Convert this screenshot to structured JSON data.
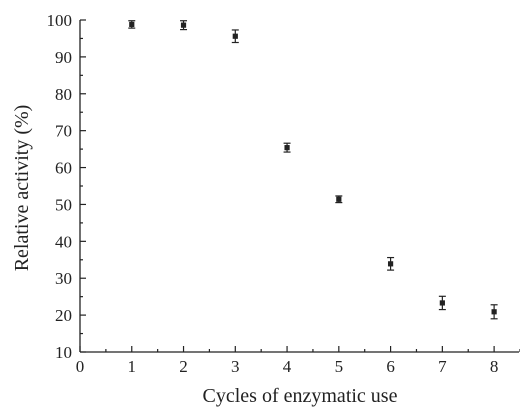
{
  "chart_data": {
    "type": "scatter",
    "title": "",
    "xlabel": "Cycles of enzymatic use",
    "ylabel": "Relative activity (%)",
    "xlim": [
      0,
      8.5
    ],
    "ylim": [
      10,
      100
    ],
    "x_ticks": [
      0,
      1,
      2,
      3,
      4,
      5,
      6,
      7,
      8
    ],
    "y_ticks": [
      10,
      20,
      30,
      40,
      50,
      60,
      70,
      80,
      90,
      100
    ],
    "grid": false,
    "legend": "none",
    "series": [
      {
        "x": [
          1,
          2,
          3,
          4,
          5,
          6,
          7,
          8
        ],
        "y": [
          98.8,
          98.6,
          95.6,
          65.4,
          51.4,
          33.9,
          23.3,
          20.9
        ],
        "error": [
          1.0,
          1.2,
          1.7,
          1.2,
          0.9,
          1.7,
          1.8,
          1.9
        ]
      }
    ],
    "marker_color": "#222222"
  }
}
